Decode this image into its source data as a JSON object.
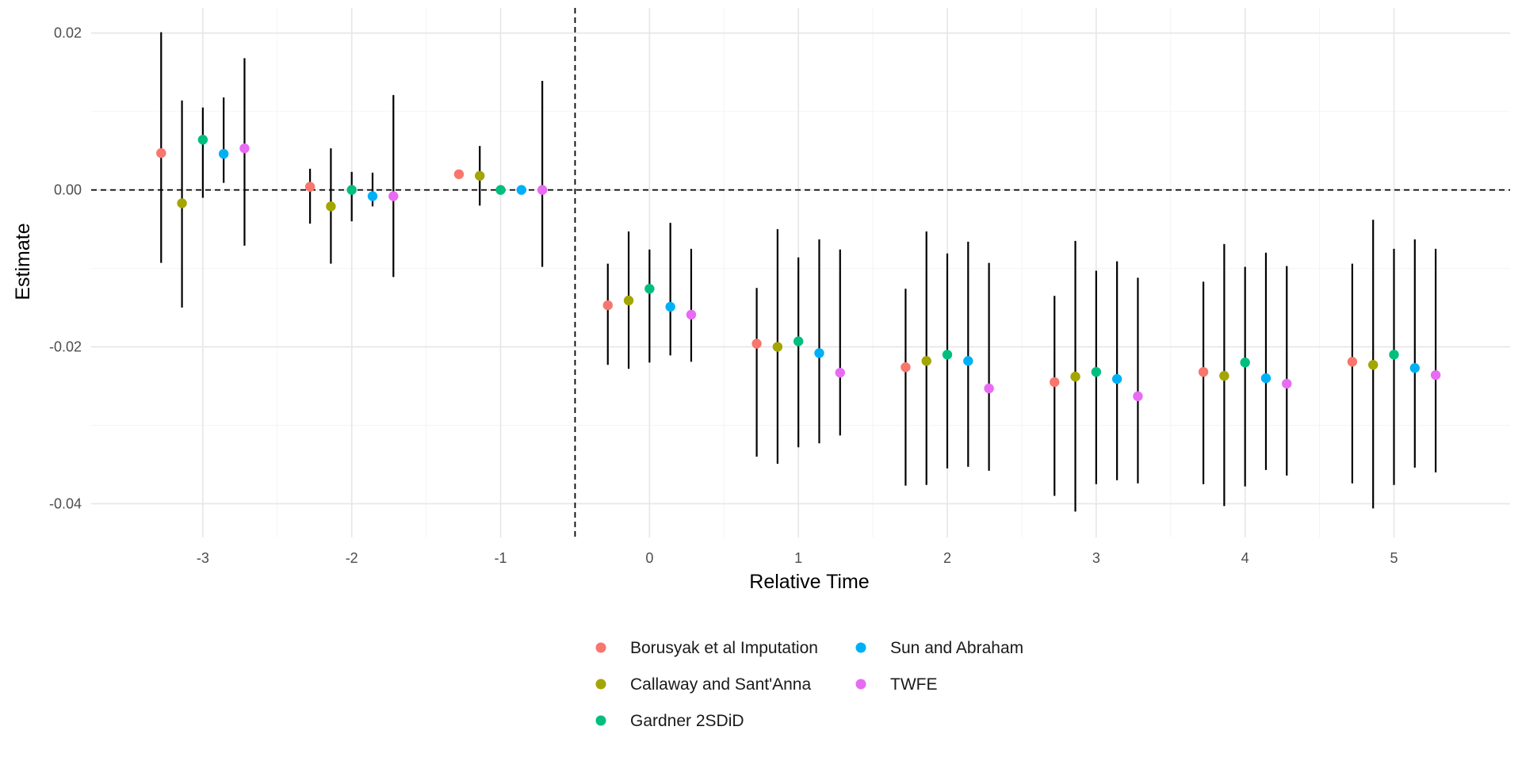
{
  "chart_data": {
    "type": "scatter",
    "subtype": "event-study coefficient plot with confidence intervals",
    "xlabel": "Relative Time",
    "ylabel": "Estimate",
    "x_ticks": [
      -3,
      -2,
      -1,
      0,
      1,
      2,
      3,
      4,
      5
    ],
    "y_ticks": [
      0.02,
      0.0,
      -0.02,
      -0.04
    ],
    "y_tick_labels": [
      "0.02",
      "0.00",
      "-0.02",
      "-0.04"
    ],
    "xlim": [
      -3.75,
      5.78
    ],
    "ylim": [
      -0.0443,
      0.0232
    ],
    "grid": true,
    "reference_lines": {
      "horizontal_y": 0,
      "vertical_x": -0.5,
      "style": "dashed"
    },
    "dodge_width": 0.14,
    "legend_position": "bottom",
    "x": [
      -3,
      -2,
      -1,
      0,
      1,
      2,
      3,
      4,
      5
    ],
    "series": [
      {
        "name": "Borusyak et al Imputation",
        "color": "#F8766D",
        "offset_index": -2,
        "estimates": [
          0.0047,
          0.0004,
          0.002,
          -0.0147,
          -0.0196,
          -0.0226,
          -0.0245,
          -0.0232,
          -0.0219
        ],
        "ci_lower": [
          -0.0093,
          -0.0043,
          null,
          -0.0223,
          -0.034,
          -0.0377,
          -0.039,
          -0.0375,
          -0.0374
        ],
        "ci_upper": [
          0.0201,
          0.0027,
          null,
          -0.0094,
          -0.0125,
          -0.0126,
          -0.0135,
          -0.0117,
          -0.0094
        ]
      },
      {
        "name": "Callaway and Sant'Anna",
        "color": "#A3A500",
        "offset_index": -1,
        "estimates": [
          -0.0017,
          -0.0021,
          0.0018,
          -0.0141,
          -0.02,
          -0.0218,
          -0.0238,
          -0.0237,
          -0.0223
        ],
        "ci_lower": [
          -0.015,
          -0.0094,
          -0.002,
          -0.0228,
          -0.0349,
          -0.0376,
          -0.041,
          -0.0403,
          -0.0406
        ],
        "ci_upper": [
          0.0114,
          0.0053,
          0.0056,
          -0.0053,
          -0.005,
          -0.0053,
          -0.0065,
          -0.0069,
          -0.0038
        ]
      },
      {
        "name": "Gardner 2SDiD",
        "color": "#00BF7D",
        "offset_index": 0,
        "estimates": [
          0.0064,
          0.0,
          0.0,
          -0.0126,
          -0.0193,
          -0.021,
          -0.0232,
          -0.022,
          -0.021
        ],
        "ci_lower": [
          -0.001,
          -0.004,
          null,
          -0.022,
          -0.0328,
          -0.0355,
          -0.0375,
          -0.0378,
          -0.0376
        ],
        "ci_upper": [
          0.0105,
          0.0023,
          null,
          -0.0076,
          -0.0086,
          -0.0081,
          -0.0103,
          -0.0098,
          -0.0075
        ]
      },
      {
        "name": "Sun and Abraham",
        "color": "#00B0F6",
        "offset_index": 1,
        "estimates": [
          0.0046,
          -0.0008,
          0.0,
          -0.0149,
          -0.0208,
          -0.0218,
          -0.0241,
          -0.024,
          -0.0227
        ],
        "ci_lower": [
          0.0009,
          -0.0021,
          null,
          -0.0211,
          -0.0323,
          -0.0353,
          -0.037,
          -0.0357,
          -0.0354
        ],
        "ci_upper": [
          0.0118,
          0.0022,
          null,
          -0.0042,
          -0.0063,
          -0.0066,
          -0.0091,
          -0.008,
          -0.0063
        ]
      },
      {
        "name": "TWFE",
        "color": "#E76BF3",
        "offset_index": 2,
        "estimates": [
          0.0053,
          -0.0008,
          0.0,
          -0.0159,
          -0.0233,
          -0.0253,
          -0.0263,
          -0.0247,
          -0.0236
        ],
        "ci_lower": [
          -0.0071,
          -0.0111,
          -0.0098,
          -0.0219,
          -0.0313,
          -0.0358,
          -0.0374,
          -0.0364,
          -0.036
        ],
        "ci_upper": [
          0.0168,
          0.0121,
          0.0139,
          -0.0075,
          -0.0076,
          -0.0093,
          -0.0112,
          -0.0097,
          -0.0075
        ]
      }
    ],
    "legend": {
      "columns": [
        [
          "Borusyak et al Imputation",
          "Callaway and Sant'Anna",
          "Gardner 2SDiD"
        ],
        [
          "Sun and Abraham",
          "TWFE"
        ]
      ]
    }
  }
}
